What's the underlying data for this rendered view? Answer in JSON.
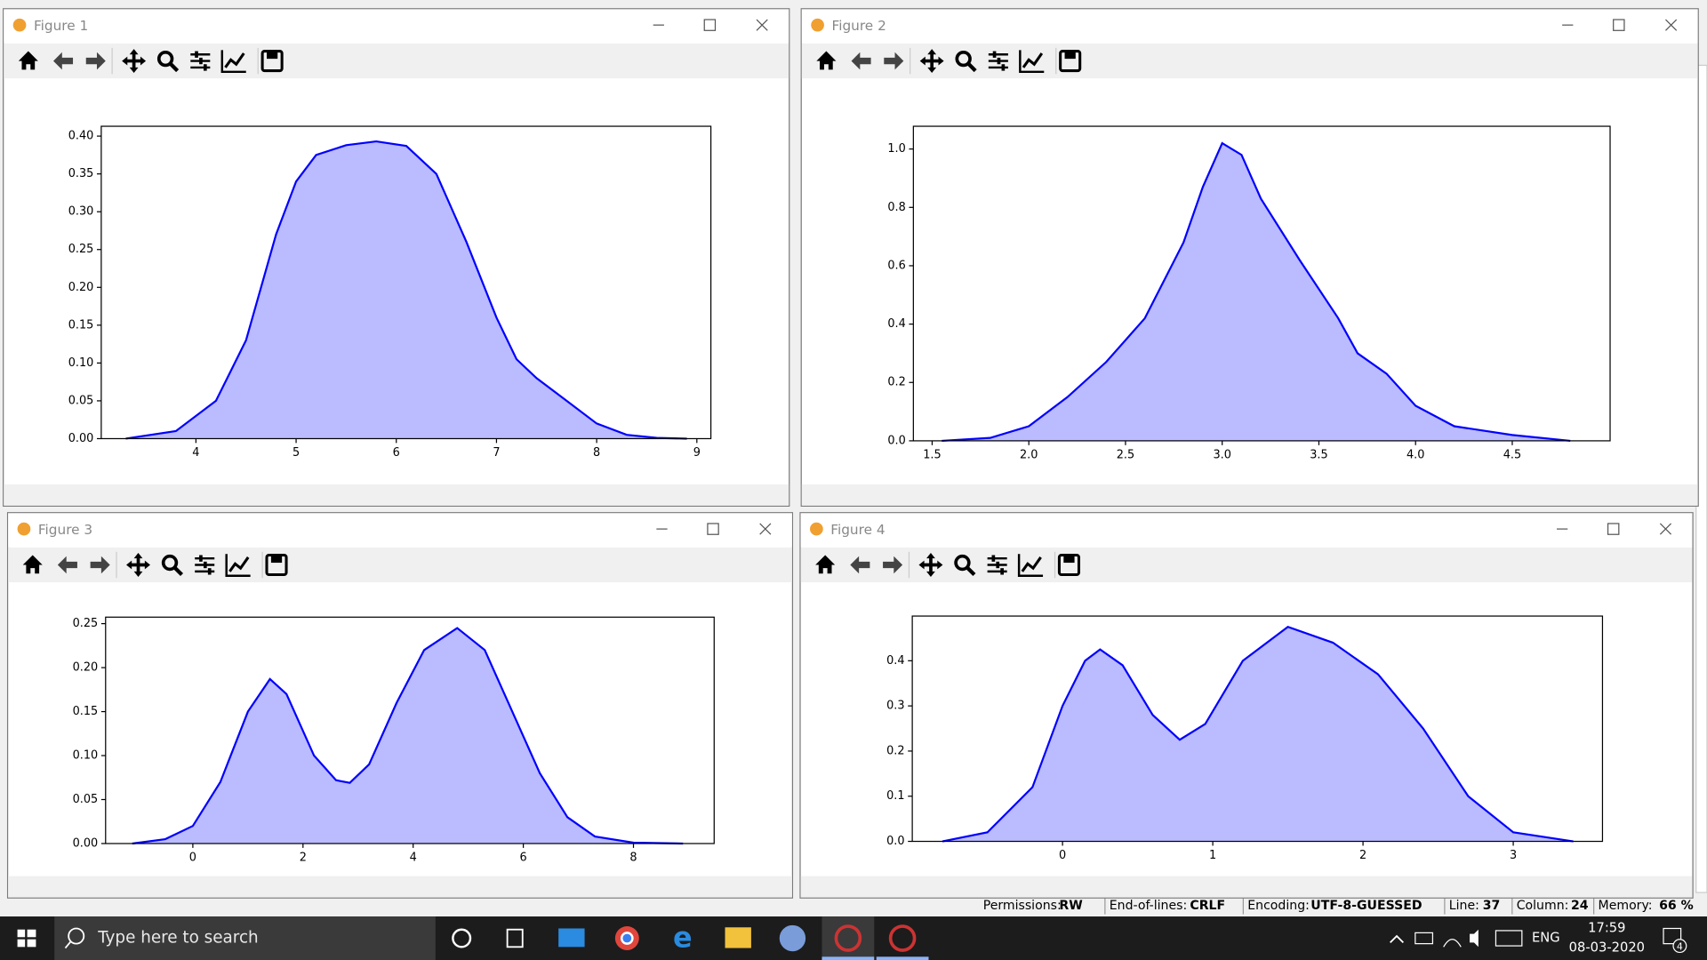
{
  "windows": [
    {
      "title": "Figure 1",
      "chart": {
        "type": "area",
        "color": "#0000ff",
        "fill": "#bbbbff",
        "x": [
          3.3,
          3.8,
          4.2,
          4.5,
          4.8,
          5.0,
          5.2,
          5.5,
          5.8,
          6.1,
          6.4,
          6.7,
          7.0,
          7.2,
          7.4,
          7.7,
          8.0,
          8.3,
          8.6,
          8.9
        ],
        "values": [
          0.0,
          0.01,
          0.05,
          0.13,
          0.27,
          0.34,
          0.375,
          0.388,
          0.393,
          0.387,
          0.35,
          0.26,
          0.16,
          0.105,
          0.08,
          0.05,
          0.02,
          0.005,
          0.001,
          0.0
        ],
        "xlim": [
          3.055,
          9.14
        ],
        "ylim": [
          0,
          0.413
        ],
        "xticks": [
          4,
          5,
          6,
          7,
          8,
          9
        ],
        "yticks": [
          {
            "value": 0,
            "label": "0.00"
          },
          {
            "value": 0.05,
            "label": "0.05"
          },
          {
            "value": 0.1,
            "label": "0.10"
          },
          {
            "value": 0.15,
            "label": "0.15"
          },
          {
            "value": 0.2,
            "label": "0.20"
          },
          {
            "value": 0.25,
            "label": "0.25"
          },
          {
            "value": 0.3,
            "label": "0.30"
          },
          {
            "value": 0.35,
            "label": "0.35"
          },
          {
            "value": 0.4,
            "label": "0.40"
          }
        ]
      }
    },
    {
      "title": "Figure 2",
      "chart": {
        "type": "area",
        "color": "#0000ff",
        "fill": "#bbbbff",
        "x": [
          1.55,
          1.8,
          2.0,
          2.2,
          2.4,
          2.6,
          2.8,
          2.9,
          3.0,
          3.1,
          3.2,
          3.4,
          3.6,
          3.7,
          3.85,
          4.0,
          4.2,
          4.5,
          4.8
        ],
        "values": [
          0.0,
          0.01,
          0.05,
          0.15,
          0.27,
          0.42,
          0.68,
          0.87,
          1.02,
          0.98,
          0.83,
          0.62,
          0.42,
          0.3,
          0.23,
          0.12,
          0.05,
          0.02,
          0.0
        ],
        "xlim": [
          1.403,
          5.006
        ],
        "ylim": [
          0,
          1.078
        ],
        "xticks": [
          1.5,
          {
            "value": 2,
            "label": "2.0"
          },
          2.5,
          {
            "value": 3,
            "label": "3.0"
          },
          3.5,
          {
            "value": 4,
            "label": "4.0"
          },
          4.5
        ],
        "yticks": [
          {
            "value": 0,
            "label": "0.0"
          },
          0.2,
          0.4,
          0.6,
          0.8,
          {
            "value": 1,
            "label": "1.0"
          }
        ]
      }
    },
    {
      "title": "Figure 3",
      "chart": {
        "type": "area",
        "color": "#0000ff",
        "fill": "#bbbbff",
        "x": [
          -1.1,
          -0.5,
          0,
          0.5,
          1.0,
          1.4,
          1.7,
          2.2,
          2.6,
          2.85,
          3.2,
          3.7,
          4.2,
          4.8,
          5.3,
          5.8,
          6.3,
          6.8,
          7.3,
          8.0,
          8.9
        ],
        "values": [
          0.0,
          0.005,
          0.02,
          0.07,
          0.15,
          0.187,
          0.17,
          0.1,
          0.072,
          0.069,
          0.09,
          0.16,
          0.22,
          0.245,
          0.22,
          0.15,
          0.08,
          0.03,
          0.008,
          0.001,
          0.0
        ],
        "xlim": [
          -1.584,
          9.465
        ],
        "ylim": [
          0,
          0.2574
        ],
        "xticks": [
          0,
          2,
          4,
          6,
          8
        ],
        "yticks": [
          {
            "value": 0,
            "label": "0.00"
          },
          {
            "value": 0.05,
            "label": "0.05"
          },
          {
            "value": 0.1,
            "label": "0.10"
          },
          {
            "value": 0.15,
            "label": "0.15"
          },
          {
            "value": 0.2,
            "label": "0.20"
          },
          {
            "value": 0.25,
            "label": "0.25"
          }
        ]
      }
    },
    {
      "title": "Figure 4",
      "chart": {
        "type": "area",
        "color": "#0000ff",
        "fill": "#bbbbff",
        "x": [
          -0.8,
          -0.5,
          -0.2,
          0,
          0.15,
          0.25,
          0.4,
          0.6,
          0.78,
          0.95,
          1.2,
          1.5,
          1.8,
          2.1,
          2.4,
          2.7,
          3.0,
          3.4
        ],
        "values": [
          0.0,
          0.02,
          0.12,
          0.3,
          0.4,
          0.425,
          0.39,
          0.28,
          0.225,
          0.26,
          0.4,
          0.475,
          0.44,
          0.37,
          0.25,
          0.1,
          0.02,
          0.0
        ],
        "xlim": [
          -1.0,
          3.594
        ],
        "ylim": [
          0,
          0.499
        ],
        "xticks": [
          0,
          1,
          2,
          3
        ],
        "yticks": [
          {
            "value": 0,
            "label": "0.0"
          },
          0.1,
          0.2,
          0.3,
          0.4
        ]
      }
    }
  ],
  "status_bar": {
    "items": [
      "Permissions:",
      "RW",
      "End-of-lines:",
      "CRLF",
      "Encoding:",
      "UTF-8-GUESSED",
      "Line:",
      "37",
      "Column:",
      "24",
      "Memory:",
      "66 %"
    ]
  },
  "taskbar": {
    "search": "Type here to search",
    "language": "ENG",
    "time": "17:59",
    "date": "08-03-2020",
    "notifications": "4"
  }
}
